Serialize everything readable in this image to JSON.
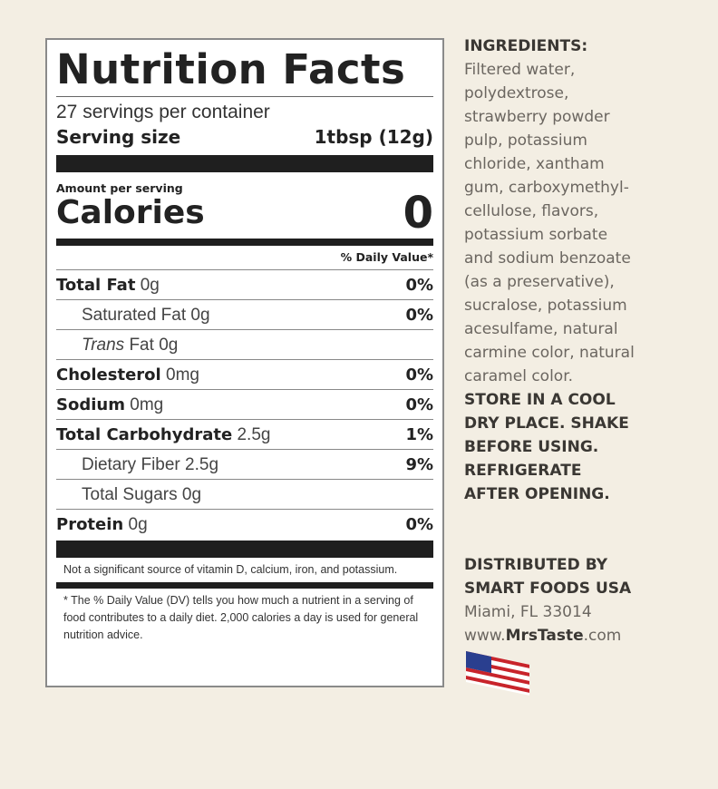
{
  "label": {
    "title": "Nutrition Facts",
    "servings": "27 servings per container",
    "serving_size_label": "Serving size",
    "serving_size_value": "1tbsp (12g)",
    "amount_per_serving": "Amount per serving",
    "calories_label": "Calories",
    "calories_value": "0",
    "dv_header": "% Daily Value*",
    "rows": [
      {
        "name": "Total Fat",
        "amount": "0g",
        "dv": "0%",
        "bold": true,
        "indent": false
      },
      {
        "name": "Saturated Fat",
        "amount": "0g",
        "dv": "0%",
        "bold": false,
        "indent": true
      },
      {
        "name": "Trans",
        "name_suffix": " Fat",
        "amount": "0g",
        "dv": "",
        "bold": false,
        "indent": true,
        "italic": true
      },
      {
        "name": "Cholesterol",
        "amount": "0mg",
        "dv": "0%",
        "bold": true,
        "indent": false
      },
      {
        "name": "Sodium",
        "amount": "0mg",
        "dv": "0%",
        "bold": true,
        "indent": false
      },
      {
        "name": "Total Carbohydrate",
        "amount": "2.5g",
        "dv": "1%",
        "bold": true,
        "indent": false
      },
      {
        "name": "Dietary Fiber",
        "amount": "2.5g",
        "dv": "9%",
        "bold": false,
        "indent": true
      },
      {
        "name": "Total Sugars",
        "amount": "0g",
        "dv": "",
        "bold": false,
        "indent": true
      },
      {
        "name": "Protein",
        "amount": "0g",
        "dv": "0%",
        "bold": true,
        "indent": false
      }
    ],
    "vitamin_note": "Not a significant source of vitamin D, calcium, iron, and potassium.",
    "dv_note": "* The % Daily Value (DV) tells you how much a nutrient in a serving of food contributes to a daily diet. 2,000 calories a day is used for general nutrition advice."
  },
  "ingredients": {
    "heading": "INGREDIENTS:",
    "lines": [
      "Filtered water,",
      "polydextrose,",
      "strawberry powder",
      "pulp, potassium",
      "chloride, xantham",
      "gum, carboxymethyl-",
      "cellulose, flavors,",
      "potassium sorbate",
      "and sodium benzoate",
      "(as a preservative),",
      "sucralose, potassium",
      "acesulfame, natural",
      "carmine color, natural",
      "caramel color."
    ],
    "storage_lines": [
      "STORE IN A COOL",
      "DRY PLACE. SHAKE",
      "BEFORE USING.",
      "REFRIGERATE",
      "AFTER OPENING."
    ]
  },
  "distributor": {
    "lines": [
      "DISTRIBUTED BY",
      "SMART FOODS USA"
    ],
    "address": "Miami, FL 33014",
    "web_prefix": "www.",
    "web_brand": "MrsTaste",
    "web_suffix": ".com",
    "flag_icon": "us-flag-icon"
  }
}
